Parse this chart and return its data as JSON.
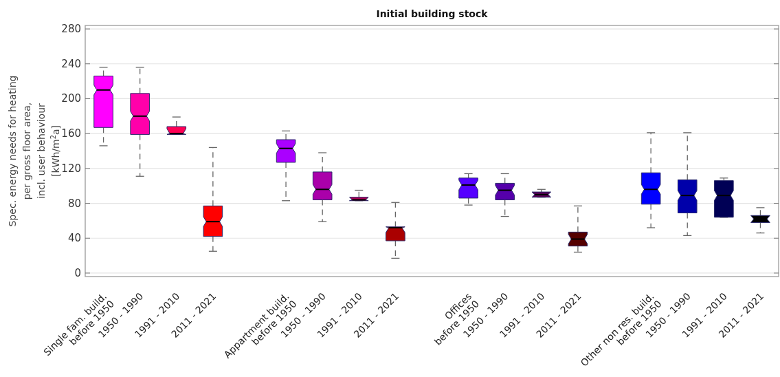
{
  "chart_data": {
    "type": "box",
    "title": "Initial building stock",
    "ylabel": "Spec. energy needs for heating\nper gross floor area,\nincl. user behaviour\n[kWh/m$^{2}$a]",
    "categories": [
      "Single fam. build.\nbefore 1950",
      "1950 - 1990",
      "1991 - 2010",
      "2011 - 2021",
      null,
      "Appartment build.\nbefore 1950",
      "1950 - 1990",
      "1991 - 2010",
      "2011 - 2021",
      null,
      "Offices\nbefore 1950",
      "1950 - 1990",
      "1991 - 2010",
      "2011 - 2021",
      null,
      "Other non res. build.\nbefore 1950",
      "1950 - 1990",
      "1991 - 2010",
      "2011 - 2021"
    ],
    "boxes": [
      {
        "low": 146,
        "q1": 167,
        "median": 210,
        "q3": 226,
        "high": 236
      },
      {
        "low": 111,
        "q1": 159,
        "median": 180,
        "q3": 206,
        "high": 236
      },
      {
        "low": 159,
        "q1": 159,
        "median": 160,
        "q3": 168,
        "high": 179
      },
      {
        "low": 25,
        "q1": 42,
        "median": 59,
        "q3": 77,
        "high": 144
      },
      null,
      {
        "low": 83,
        "q1": 127,
        "median": 143,
        "q3": 153,
        "high": 163
      },
      {
        "low": 59,
        "q1": 84,
        "median": 96,
        "q3": 116,
        "high": 138
      },
      {
        "low": 83,
        "q1": 83,
        "median": 84,
        "q3": 87,
        "high": 95
      },
      {
        "low": 17,
        "q1": 37,
        "median": 52,
        "q3": 53,
        "high": 81
      },
      null,
      {
        "low": 78,
        "q1": 86,
        "median": 101,
        "q3": 109,
        "high": 114
      },
      {
        "low": 65,
        "q1": 84,
        "median": 95,
        "q3": 103,
        "high": 114
      },
      {
        "low": 87,
        "q1": 87,
        "median": 90,
        "q3": 93,
        "high": 96
      },
      {
        "low": 24,
        "q1": 31,
        "median": 39,
        "q3": 47,
        "high": 77
      },
      null,
      {
        "low": 52,
        "q1": 79,
        "median": 96,
        "q3": 115,
        "high": 161
      },
      {
        "low": 43,
        "q1": 69,
        "median": 89,
        "q3": 107,
        "high": 161
      },
      {
        "low": 64,
        "q1": 64,
        "median": 89,
        "q3": 106,
        "high": 109
      },
      {
        "low": 46,
        "q1": 58,
        "median": 62,
        "q3": 66,
        "high": 75
      }
    ],
    "colors": [
      "#ff00ff",
      "#ff00aa",
      "#ff0055",
      "#ff0000",
      null,
      "#aa00ff",
      "#aa00aa",
      "#aa0055",
      "#aa0000",
      null,
      "#5500ff",
      "#5500aa",
      "#550055",
      "#550000",
      null,
      "#0000ff",
      "#0000aa",
      "#000055",
      "#000000"
    ],
    "ylim": [
      -4,
      284
    ],
    "yticks": [
      0,
      40,
      80,
      120,
      160,
      200,
      240,
      280
    ],
    "grid": "y"
  }
}
